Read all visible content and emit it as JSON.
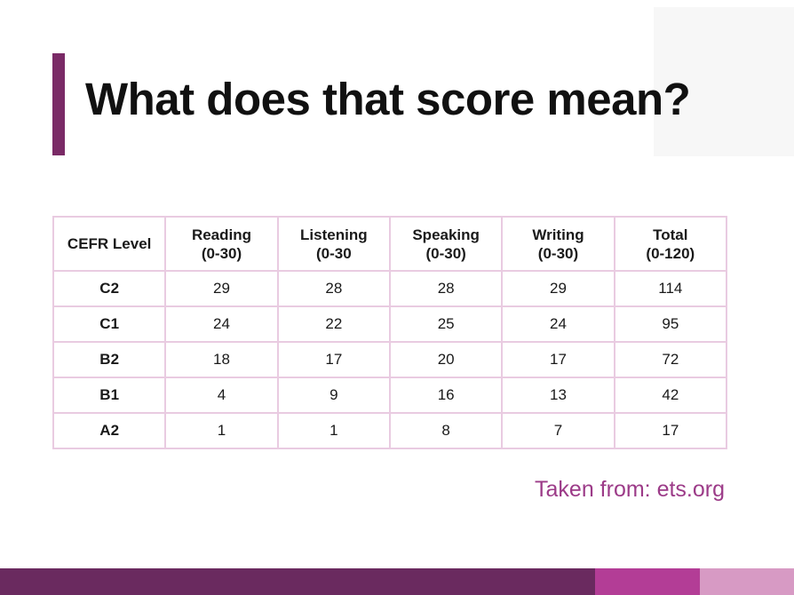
{
  "slide": {
    "title": "What does that score mean?",
    "source": "Taken from: ets.org"
  },
  "table": {
    "headers": [
      [
        "CEFR Level"
      ],
      [
        "Reading",
        "(0-30)"
      ],
      [
        "Listening",
        "(0-30"
      ],
      [
        "Speaking",
        "(0-30)"
      ],
      [
        "Writing",
        "(0-30)"
      ],
      [
        "Total",
        "(0-120)"
      ]
    ],
    "rows": [
      [
        "C2",
        "29",
        "28",
        "28",
        "29",
        "114"
      ],
      [
        "C1",
        "24",
        "22",
        "25",
        "24",
        "95"
      ],
      [
        "B2",
        "18",
        "17",
        "20",
        "17",
        "72"
      ],
      [
        "B1",
        "4",
        "9",
        "16",
        "13",
        "42"
      ],
      [
        "A2",
        "1",
        "1",
        "8",
        "7",
        "17"
      ]
    ]
  },
  "colors": {
    "accent_bar": "#7a2a66",
    "table_border": "#e9cbe1",
    "source_text": "#9c3b88",
    "footer": [
      "#6a2a5f",
      "#b33d96",
      "#d79ac4"
    ]
  }
}
